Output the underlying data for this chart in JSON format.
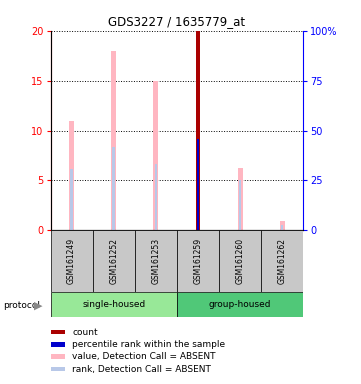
{
  "title": "GDS3227 / 1635779_at",
  "samples": [
    "GSM161249",
    "GSM161252",
    "GSM161253",
    "GSM161259",
    "GSM161260",
    "GSM161262"
  ],
  "value_absent": [
    11.0,
    18.0,
    15.0,
    null,
    6.2,
    0.9
  ],
  "rank_absent": [
    6.1,
    8.4,
    6.7,
    null,
    5.0,
    0.5
  ],
  "count_present": [
    null,
    null,
    null,
    20.0,
    null,
    null
  ],
  "rank_present": [
    null,
    null,
    null,
    9.2,
    null,
    null
  ],
  "ylim": [
    0,
    20
  ],
  "yticks_left": [
    0,
    5,
    10,
    15,
    20
  ],
  "yticks_right": [
    0,
    25,
    50,
    75,
    100
  ],
  "color_value_absent": "#FFB6C1",
  "color_rank_absent": "#B8C8E8",
  "color_count": "#AA0000",
  "color_rank_present": "#0000CC",
  "legend_items": [
    {
      "label": "count",
      "color": "#AA0000"
    },
    {
      "label": "percentile rank within the sample",
      "color": "#0000CC"
    },
    {
      "label": "value, Detection Call = ABSENT",
      "color": "#FFB6C1"
    },
    {
      "label": "rank, Detection Call = ABSENT",
      "color": "#B8C8E8"
    }
  ]
}
